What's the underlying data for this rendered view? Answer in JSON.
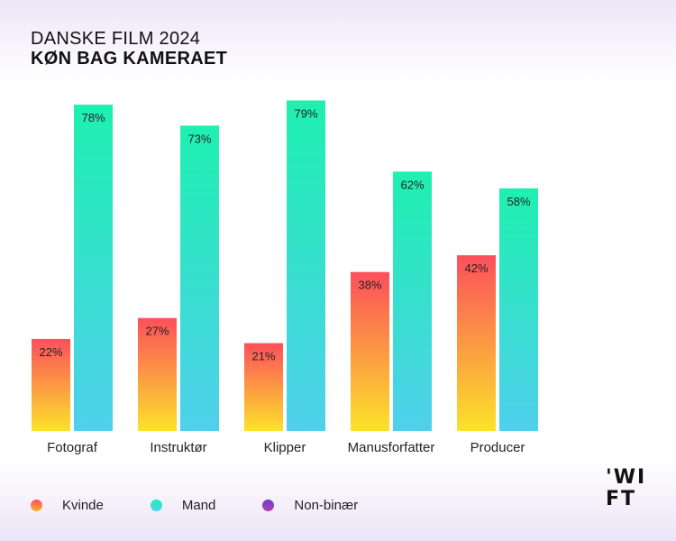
{
  "chart_data": {
    "type": "bar",
    "title": "DANSKE FILM 2024",
    "subtitle": "KØN BAG KAMERAET",
    "categories": [
      "Fotograf",
      "Instruktør",
      "Klipper",
      "Manusforfatter",
      "Producer"
    ],
    "series": [
      {
        "name": "Kvinde",
        "values": [
          22,
          27,
          21,
          38,
          42
        ],
        "labels": [
          "22%",
          "27%",
          "21%",
          "38%",
          "42%"
        ],
        "color_top": "#fc4f5c",
        "color_bottom": "#fce22a"
      },
      {
        "name": "Mand",
        "values": [
          78,
          73,
          79,
          62,
          58
        ],
        "labels": [
          "78%",
          "73%",
          "79%",
          "62%",
          "58%"
        ],
        "color_top": "#1ef0b0",
        "color_bottom": "#4fd0ec"
      },
      {
        "name": "Non-binær",
        "values": [
          0,
          0,
          0,
          0,
          0
        ],
        "labels": [
          "",
          "",
          "",
          "",
          ""
        ],
        "color_top": "#6a3fd0",
        "color_bottom": "#b53fa8"
      }
    ],
    "ylim": [
      0,
      100
    ],
    "grid": false,
    "legend_position": "bottom-left"
  },
  "legend": [
    {
      "label": "Kvinde",
      "color": "#fc7a45"
    },
    {
      "label": "Mand",
      "color": "#2ee6c0"
    },
    {
      "label": "Non-binær",
      "color": "#7b3fc8"
    }
  ],
  "logo": {
    "line1": "'WI",
    "line2": "FT"
  }
}
